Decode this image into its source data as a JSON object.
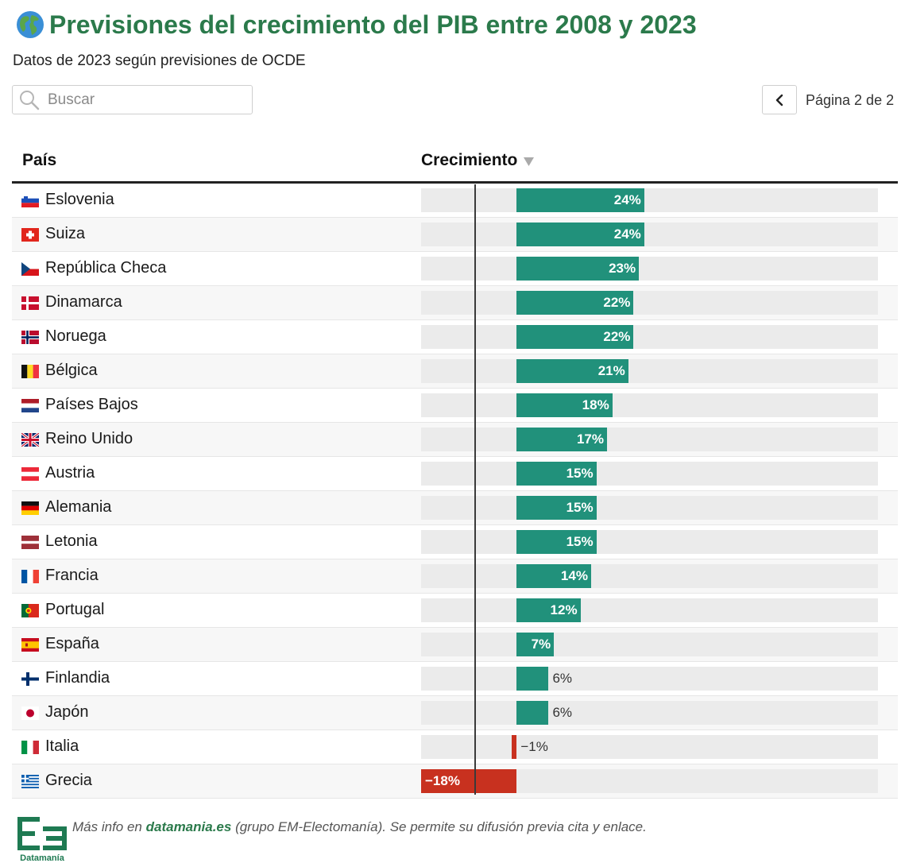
{
  "header": {
    "title": "Previsiones del crecimiento del PIB entre 2008 y 2023",
    "subtitle": "Datos de 2023 según previsiones de OCDE"
  },
  "search": {
    "placeholder": "Buscar",
    "value": ""
  },
  "pagination": {
    "label": "Página 2 de 2"
  },
  "table": {
    "col_country": "País",
    "col_growth": "Crecimiento"
  },
  "colors": {
    "positive": "#21917b",
    "negative": "#c8311f",
    "title": "#2b7a4b"
  },
  "chart_data": {
    "type": "bar",
    "orientation": "horizontal",
    "title": "Previsiones del crecimiento del PIB entre 2008 y 2023",
    "subtitle": "Datos de 2023 según previsiones de OCDE",
    "xlim": [
      -18,
      68
    ],
    "unit": "%",
    "categories": [
      "Eslovenia",
      "Suiza",
      "República Checa",
      "Dinamarca",
      "Noruega",
      "Bélgica",
      "Países Bajos",
      "Reino Unido",
      "Austria",
      "Alemania",
      "Letonia",
      "Francia",
      "Portugal",
      "España",
      "Finlandia",
      "Japón",
      "Italia",
      "Grecia"
    ],
    "values": [
      24,
      24,
      23,
      22,
      22,
      21,
      18,
      17,
      15,
      15,
      15,
      14,
      12,
      7,
      6,
      6,
      -1,
      -18
    ],
    "labels": [
      "24%",
      "24%",
      "23%",
      "22%",
      "22%",
      "21%",
      "18%",
      "17%",
      "15%",
      "15%",
      "15%",
      "14%",
      "12%",
      "7%",
      "6%",
      "6%",
      "−1%",
      "−18%"
    ],
    "flags": [
      "si",
      "ch",
      "cz",
      "dk",
      "no",
      "be",
      "nl",
      "gb",
      "at",
      "de",
      "lv",
      "fr",
      "pt",
      "es",
      "fi",
      "jp",
      "it",
      "gr"
    ]
  },
  "footer": {
    "prefix": "Más info en ",
    "link": "datamania.es",
    "suffix": " (grupo EM-Electomanía). Se permite su difusión previa cita y enlace.",
    "logo_text": "Datamanía"
  }
}
